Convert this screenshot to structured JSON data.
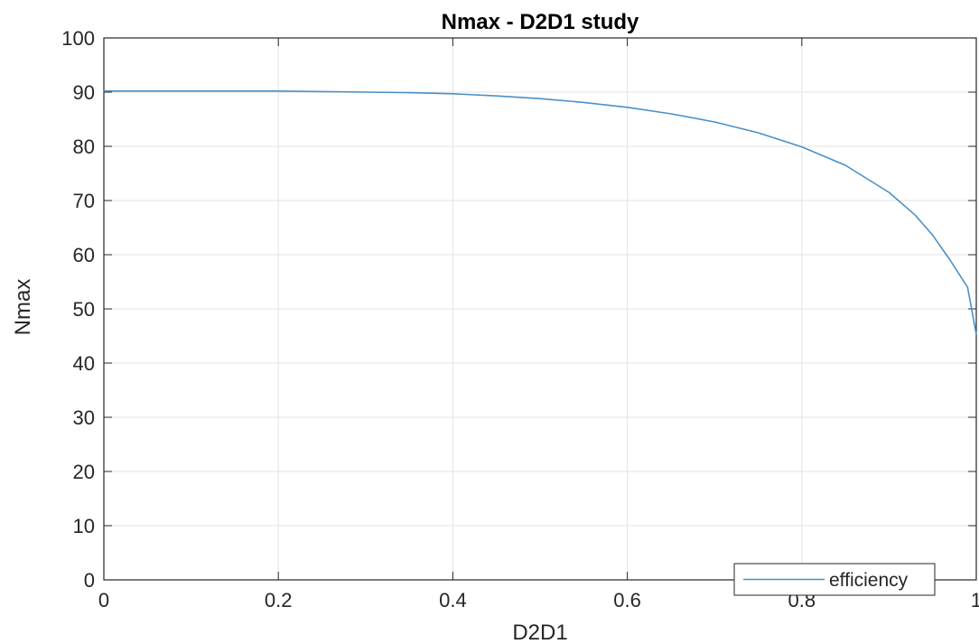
{
  "chart_data": {
    "type": "line",
    "title": "Nmax - D2D1 study",
    "xlabel": "D2D1",
    "ylabel": "Nmax",
    "xlim": [
      0,
      1
    ],
    "ylim": [
      0,
      100
    ],
    "xticks": [
      0,
      0.2,
      0.4,
      0.6,
      0.8,
      1
    ],
    "xtick_labels": [
      "0",
      "0.2",
      "0.4",
      "0.6",
      "0.8",
      "1"
    ],
    "yticks": [
      0,
      10,
      20,
      30,
      40,
      50,
      60,
      70,
      80,
      90,
      100
    ],
    "ytick_labels": [
      "0",
      "10",
      "20",
      "30",
      "40",
      "50",
      "60",
      "70",
      "80",
      "90",
      "100"
    ],
    "grid": true,
    "legend_position": "bottom-right",
    "series": [
      {
        "name": "efficiency",
        "color": "#4a90c8",
        "x": [
          0,
          0.05,
          0.1,
          0.15,
          0.2,
          0.25,
          0.3,
          0.35,
          0.4,
          0.45,
          0.5,
          0.55,
          0.6,
          0.65,
          0.7,
          0.75,
          0.8,
          0.85,
          0.9,
          0.93,
          0.95,
          0.97,
          0.99,
          1.0
        ],
        "y": [
          90.2,
          90.2,
          90.2,
          90.2,
          90.2,
          90.1,
          90.0,
          89.9,
          89.7,
          89.3,
          88.8,
          88.1,
          87.2,
          86.0,
          84.5,
          82.5,
          79.9,
          76.5,
          71.5,
          67.3,
          63.6,
          59.0,
          54.0,
          45.3
        ]
      }
    ]
  }
}
